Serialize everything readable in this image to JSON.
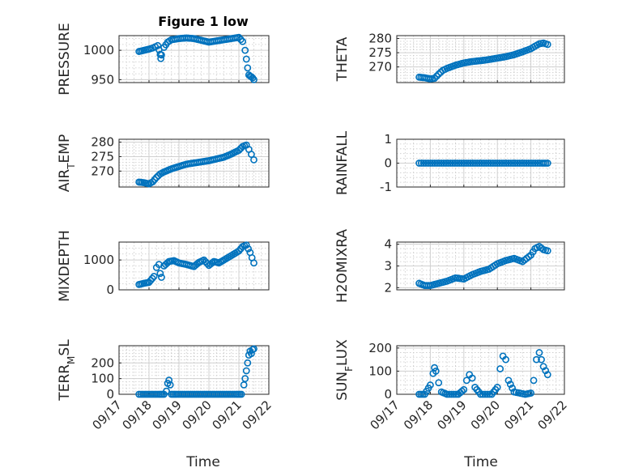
{
  "figure": {
    "title": "Figure 1 low",
    "xlabel": "Time",
    "x_tick_labels": [
      "09/17",
      "09/18",
      "09/19",
      "09/20",
      "09/21",
      "09/22"
    ],
    "marker_color": "#0072BD"
  },
  "chart_data": [
    {
      "type": "scatter",
      "panel": "top-left",
      "ylabel": "PRESSURE",
      "ylabel_sub": "",
      "ylim": [
        945,
        1025
      ],
      "yticks": [
        950,
        1000
      ],
      "show_xticklabels": false,
      "x": [
        "09/17 16:00",
        "09/17 20:00",
        "09/18 00:00",
        "09/18 03:00",
        "09/18 05:00",
        "09/18 07:00",
        "09/18 08:00",
        "09/18 09:00",
        "09/18 09:30",
        "09/18 10:00",
        "09/18 12:00",
        "09/18 15:00",
        "09/18 18:00",
        "09/19 00:00",
        "09/19 06:00",
        "09/19 12:00",
        "09/19 18:00",
        "09/20 00:00",
        "09/20 06:00",
        "09/20 12:00",
        "09/20 18:00",
        "09/21 00:00",
        "09/21 03:00",
        "09/21 05:00",
        "09/21 06:00",
        "09/21 07:00",
        "09/21 08:00",
        "09/21 09:00",
        "09/21 10:00",
        "09/21 11:00",
        "09/21 12:00"
      ],
      "y": [
        998,
        1000,
        1002,
        1004,
        1006,
        1008,
        1001,
        993,
        986,
        992,
        1005,
        1014,
        1018,
        1020,
        1021,
        1020,
        1017,
        1014,
        1016,
        1018,
        1020,
        1022,
        1015,
        1000,
        985,
        970,
        958,
        956,
        955,
        953,
        950
      ]
    },
    {
      "type": "scatter",
      "panel": "top-right",
      "ylabel": "THETA",
      "ylabel_sub": "",
      "ylim": [
        264.5,
        281
      ],
      "yticks": [
        270,
        275,
        280
      ],
      "show_xticklabels": false,
      "x": [
        "09/17 16:00",
        "09/17 20:00",
        "09/18 00:00",
        "09/18 03:00",
        "09/18 06:00",
        "09/18 09:00",
        "09/18 12:00",
        "09/18 18:00",
        "09/19 00:00",
        "09/19 06:00",
        "09/19 12:00",
        "09/19 18:00",
        "09/20 00:00",
        "09/20 06:00",
        "09/20 12:00",
        "09/20 18:00",
        "09/21 00:00",
        "09/21 03:00",
        "09/21 06:00",
        "09/21 09:00",
        "09/21 12:00"
      ],
      "y": [
        266.4,
        266.2,
        265.8,
        266.0,
        267.5,
        268.8,
        269.5,
        270.6,
        271.4,
        271.9,
        272.2,
        272.6,
        273.1,
        273.6,
        274.3,
        275.3,
        276.4,
        277.3,
        278.1,
        278.4,
        277.9
      ]
    },
    {
      "type": "scatter",
      "panel": "mid1-left",
      "ylabel": "AIR",
      "ylabel_sub": "T",
      "ylabel_suffix": "EMP",
      "ylim": [
        264.5,
        281
      ],
      "yticks": [
        270,
        275,
        280
      ],
      "show_xticklabels": false,
      "x": [
        "09/17 16:00",
        "09/17 20:00",
        "09/18 00:00",
        "09/18 03:00",
        "09/18 06:00",
        "09/18 09:00",
        "09/18 12:00",
        "09/18 18:00",
        "09/19 00:00",
        "09/19 06:00",
        "09/19 12:00",
        "09/19 18:00",
        "09/20 00:00",
        "09/20 06:00",
        "09/20 12:00",
        "09/20 18:00",
        "09/21 00:00",
        "09/21 03:00",
        "09/21 06:00",
        "09/21 08:00",
        "09/21 10:00",
        "09/21 12:00"
      ],
      "y": [
        266.2,
        266.0,
        265.6,
        266.3,
        267.8,
        269.0,
        269.7,
        270.8,
        271.6,
        272.4,
        272.8,
        273.2,
        273.6,
        274.2,
        274.8,
        275.9,
        277.2,
        278.5,
        279.0,
        277.5,
        275.8,
        273.9
      ]
    },
    {
      "type": "scatter",
      "panel": "mid1-right",
      "ylabel": "RAINFALL",
      "ylabel_sub": "",
      "ylim": [
        -1,
        1
      ],
      "yticks": [
        -1,
        0,
        1
      ],
      "show_xticklabels": false,
      "x": [
        "09/17 16:00",
        "09/18 00:00",
        "09/18 08:00",
        "09/18 16:00",
        "09/19 00:00",
        "09/19 08:00",
        "09/19 16:00",
        "09/20 00:00",
        "09/20 08:00",
        "09/20 16:00",
        "09/21 00:00",
        "09/21 08:00",
        "09/21 12:00"
      ],
      "y": [
        0,
        0,
        0,
        0,
        0,
        0,
        0,
        0,
        0,
        0,
        0,
        0,
        0
      ]
    },
    {
      "type": "scatter",
      "panel": "mid2-left",
      "ylabel": "MIXDEPTH",
      "ylabel_sub": "",
      "ylim": [
        0,
        1600
      ],
      "yticks": [
        0,
        1000
      ],
      "show_xticklabels": false,
      "x": [
        "09/17 16:00",
        "09/17 20:00",
        "09/18 00:00",
        "09/18 04:00",
        "09/18 06:00",
        "09/18 08:00",
        "09/18 09:00",
        "09/18 10:00",
        "09/18 12:00",
        "09/18 16:00",
        "09/18 20:00",
        "09/19 00:00",
        "09/19 06:00",
        "09/19 12:00",
        "09/19 16:00",
        "09/19 20:00",
        "09/20 00:00",
        "09/20 04:00",
        "09/20 08:00",
        "09/20 12:00",
        "09/20 18:00",
        "09/21 00:00",
        "09/21 03:00",
        "09/21 06:00",
        "09/21 09:00",
        "09/21 12:00"
      ],
      "y": [
        180,
        220,
        250,
        450,
        750,
        850,
        550,
        420,
        800,
        950,
        980,
        900,
        850,
        780,
        920,
        1000,
        820,
        950,
        900,
        1000,
        1150,
        1300,
        1450,
        1500,
        1250,
        900
      ]
    },
    {
      "type": "scatter",
      "panel": "mid2-right",
      "ylabel": "H2OMIXRA",
      "ylabel_sub": "",
      "ylim": [
        1.9,
        4.1
      ],
      "yticks": [
        2,
        3,
        4
      ],
      "show_xticklabels": false,
      "x": [
        "09/17 16:00",
        "09/17 20:00",
        "09/18 00:00",
        "09/18 06:00",
        "09/18 12:00",
        "09/18 18:00",
        "09/19 00:00",
        "09/19 06:00",
        "09/19 12:00",
        "09/19 18:00",
        "09/20 00:00",
        "09/20 06:00",
        "09/20 12:00",
        "09/20 18:00",
        "09/21 00:00",
        "09/21 03:00",
        "09/21 06:00",
        "09/21 09:00",
        "09/21 12:00"
      ],
      "y": [
        2.2,
        2.1,
        2.1,
        2.2,
        2.3,
        2.45,
        2.4,
        2.6,
        2.75,
        2.85,
        3.1,
        3.25,
        3.35,
        3.2,
        3.5,
        3.8,
        3.9,
        3.75,
        3.7
      ]
    },
    {
      "type": "scatter",
      "panel": "bottom-left",
      "ylabel": "TERR",
      "ylabel_sub": "M",
      "ylabel_suffix": "SL",
      "ylim": [
        0,
        310
      ],
      "yticks": [
        0,
        100,
        200
      ],
      "show_xticklabels": true,
      "x": [
        "09/17 16:00",
        "09/18 00:00",
        "09/18 08:00",
        "09/18 12:00",
        "09/18 14:00",
        "09/18 15:00",
        "09/18 16:00",
        "09/18 17:00",
        "09/18 18:00",
        "09/18 22:00",
        "09/19 06:00",
        "09/19 14:00",
        "09/19 22:00",
        "09/20 06:00",
        "09/20 14:00",
        "09/20 22:00",
        "09/21 02:00",
        "09/21 04:00",
        "09/21 05:00",
        "09/21 06:00",
        "09/21 07:00",
        "09/21 08:00",
        "09/21 09:00",
        "09/21 10:00",
        "09/21 11:00",
        "09/21 12:00"
      ],
      "y": [
        0,
        0,
        0,
        0,
        20,
        70,
        90,
        60,
        0,
        0,
        0,
        0,
        0,
        0,
        0,
        0,
        0,
        60,
        100,
        150,
        200,
        250,
        275,
        260,
        285,
        290
      ]
    },
    {
      "type": "scatter",
      "panel": "bottom-right",
      "ylabel": "SUN",
      "ylabel_sub": "F",
      "ylabel_suffix": "LUX",
      "ylim": [
        0,
        210
      ],
      "yticks": [
        0,
        100,
        200
      ],
      "show_xticklabels": true,
      "x": [
        "09/17 16:00",
        "09/17 20:00",
        "09/18 00:00",
        "09/18 02:00",
        "09/18 03:00",
        "09/18 04:00",
        "09/18 06:00",
        "09/18 08:00",
        "09/18 12:00",
        "09/18 20:00",
        "09/19 00:00",
        "09/19 02:00",
        "09/19 04:00",
        "09/19 06:00",
        "09/19 08:00",
        "09/19 12:00",
        "09/19 20:00",
        "09/20 00:00",
        "09/20 02:00",
        "09/20 04:00",
        "09/20 06:00",
        "09/20 08:00",
        "09/20 12:00",
        "09/20 20:00",
        "09/21 00:00",
        "09/21 02:00",
        "09/21 04:00",
        "09/21 06:00",
        "09/21 09:00",
        "09/21 12:00"
      ],
      "y": [
        0,
        0,
        40,
        90,
        115,
        100,
        50,
        10,
        0,
        0,
        20,
        60,
        85,
        70,
        30,
        0,
        0,
        30,
        110,
        165,
        150,
        60,
        10,
        0,
        5,
        60,
        150,
        180,
        120,
        85
      ]
    }
  ]
}
